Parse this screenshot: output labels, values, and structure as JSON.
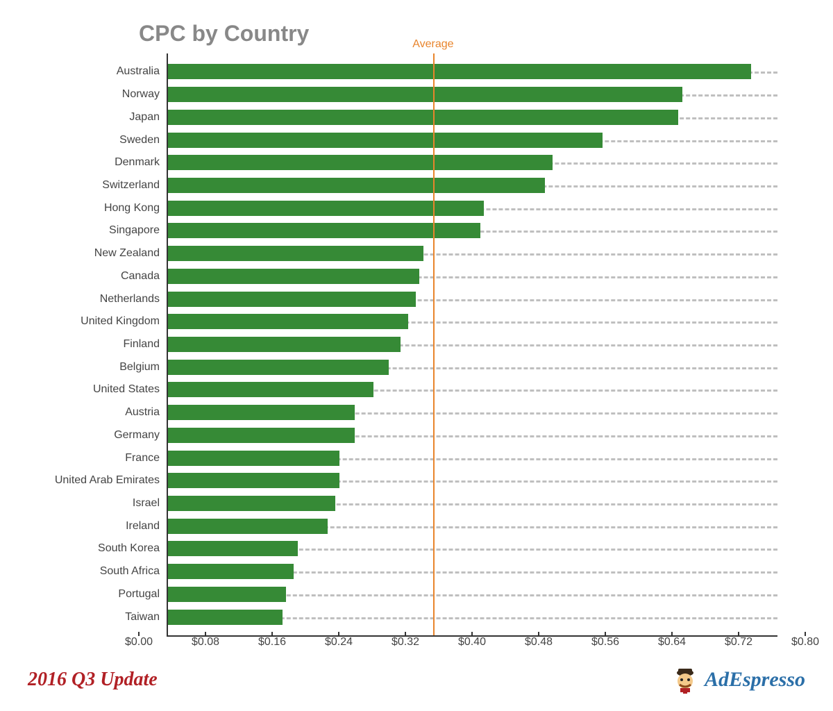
{
  "chart": {
    "type": "bar-horizontal",
    "title": "CPC by Country",
    "title_color": "#888888",
    "title_fontsize": 32,
    "bar_color": "#368a36",
    "grid_color": "#bfbfbf",
    "axis_color": "#333333",
    "background_color": "#ffffff",
    "label_color": "#444444",
    "label_fontsize": 16,
    "xmin": 0.0,
    "xmax": 0.8,
    "xtick_step": 0.08,
    "xtick_labels": [
      "$0.00",
      "$0.08",
      "$0.16",
      "$0.24",
      "$0.32",
      "$0.40",
      "$0.48",
      "$0.56",
      "$0.64",
      "$0.72",
      "$0.80"
    ],
    "average": {
      "value": 0.348,
      "label": "Average",
      "color": "#e8842c"
    },
    "rows": [
      {
        "label": "Australia",
        "value": 0.765
      },
      {
        "label": "Norway",
        "value": 0.675
      },
      {
        "label": "Japan",
        "value": 0.67
      },
      {
        "label": "Sweden",
        "value": 0.57
      },
      {
        "label": "Denmark",
        "value": 0.505
      },
      {
        "label": "Switzerland",
        "value": 0.495
      },
      {
        "label": "Hong Kong",
        "value": 0.415
      },
      {
        "label": "Singapore",
        "value": 0.41
      },
      {
        "label": "New Zealand",
        "value": 0.335
      },
      {
        "label": "Canada",
        "value": 0.33
      },
      {
        "label": "Netherlands",
        "value": 0.325
      },
      {
        "label": "United Kingdom",
        "value": 0.315
      },
      {
        "label": "Finland",
        "value": 0.305
      },
      {
        "label": "Belgium",
        "value": 0.29
      },
      {
        "label": "United States",
        "value": 0.27
      },
      {
        "label": "Austria",
        "value": 0.245
      },
      {
        "label": "Germany",
        "value": 0.245
      },
      {
        "label": "France",
        "value": 0.225
      },
      {
        "label": "United Arab Emirates",
        "value": 0.225
      },
      {
        "label": "Israel",
        "value": 0.22
      },
      {
        "label": "Ireland",
        "value": 0.21
      },
      {
        "label": "South Korea",
        "value": 0.17
      },
      {
        "label": "South Africa",
        "value": 0.165
      },
      {
        "label": "Portugal",
        "value": 0.155
      },
      {
        "label": "Taiwan",
        "value": 0.15
      }
    ]
  },
  "footer": {
    "update_label": "2016 Q3 Update",
    "update_color": "#b12025",
    "brand_name": "AdEspresso",
    "brand_color": "#2b6fa8"
  }
}
